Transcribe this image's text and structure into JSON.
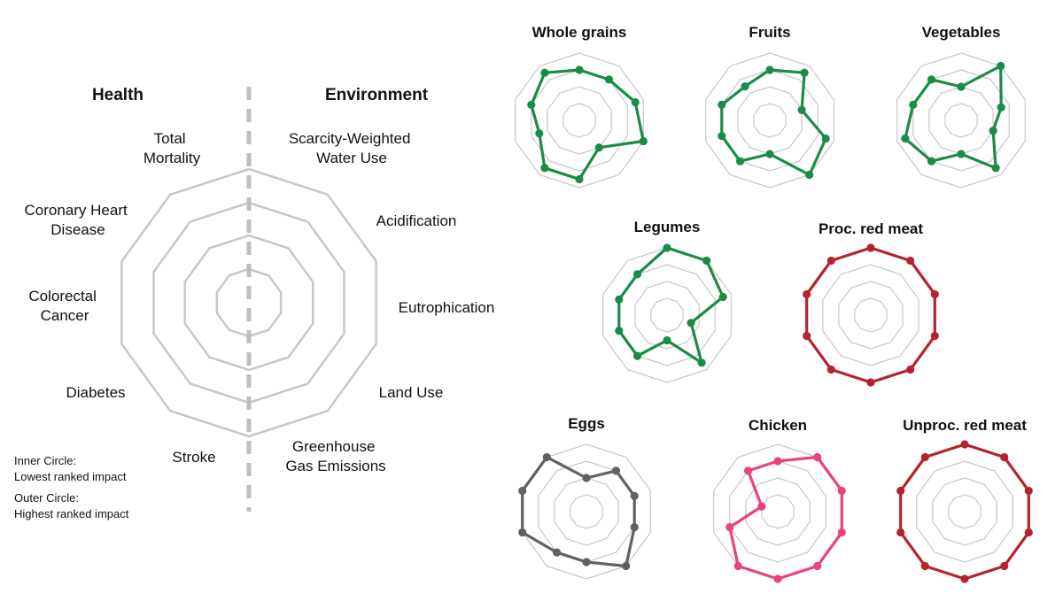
{
  "legend": {
    "health_title": "Health",
    "environment_title": "Environment",
    "axis_labels": [
      [
        "Total",
        "Mortality"
      ],
      [
        "Scarcity-Weighted",
        "Water Use"
      ],
      [
        "Acidification"
      ],
      [
        "Eutrophication"
      ],
      [
        "Land Use"
      ],
      [
        "Greenhouse",
        "Gas Emissions"
      ],
      [
        "Stroke"
      ],
      [
        "Diabetes"
      ],
      [
        "Colorectal",
        "Cancer"
      ],
      [
        "Coronary Heart",
        "Disease"
      ]
    ],
    "notes": [
      "Inner Circle:",
      "Lowest ranked impact",
      "Outer Circle:",
      "Highest ranked impact"
    ]
  },
  "colors": {
    "green": "#1a8c45",
    "red": "#b5232e",
    "gray": "#616161",
    "pink": "#e8437a",
    "grid": "#c8c8c8",
    "divider": "#bdbdbd"
  },
  "chart_data": [
    {
      "type": "radar",
      "title": "Whole grains",
      "color": "green",
      "values": [
        3,
        3,
        3.5,
        4,
        2,
        3.5,
        3.5,
        2.5,
        3,
        3.5
      ],
      "rmax": 4
    },
    {
      "type": "radar",
      "title": "Fruits",
      "color": "green",
      "values": [
        3,
        3.5,
        2,
        3.5,
        4,
        2,
        3,
        3,
        3,
        2.5
      ],
      "rmax": 4
    },
    {
      "type": "radar",
      "title": "Vegetables",
      "color": "green",
      "values": [
        2,
        4,
        2.5,
        2,
        3.5,
        2,
        3,
        3.5,
        3,
        3
      ],
      "rmax": 4
    },
    {
      "type": "radar",
      "title": "Legumes",
      "color": "green",
      "values": [
        4,
        4,
        3.5,
        1.5,
        3.5,
        1.5,
        3,
        3,
        3,
        3
      ],
      "rmax": 4
    },
    {
      "type": "radar",
      "title": "Proc. red meat",
      "color": "red",
      "values": [
        4,
        4,
        4,
        4,
        4,
        4,
        4,
        4,
        4,
        4
      ],
      "rmax": 4
    },
    {
      "type": "radar",
      "title": "Eggs",
      "color": "gray",
      "values": [
        2,
        3,
        3,
        3,
        4,
        3,
        3,
        4,
        4,
        4
      ],
      "rmax": 4
    },
    {
      "type": "radar",
      "title": "Chicken",
      "color": "pink",
      "values": [
        3,
        4,
        4,
        4,
        4,
        4,
        4,
        3,
        1,
        3
      ],
      "rmax": 4
    },
    {
      "type": "radar",
      "title": "Unproc. red meat",
      "color": "red",
      "values": [
        4,
        4,
        4,
        4,
        4,
        4,
        4,
        4,
        4,
        4
      ],
      "rmax": 4
    }
  ]
}
